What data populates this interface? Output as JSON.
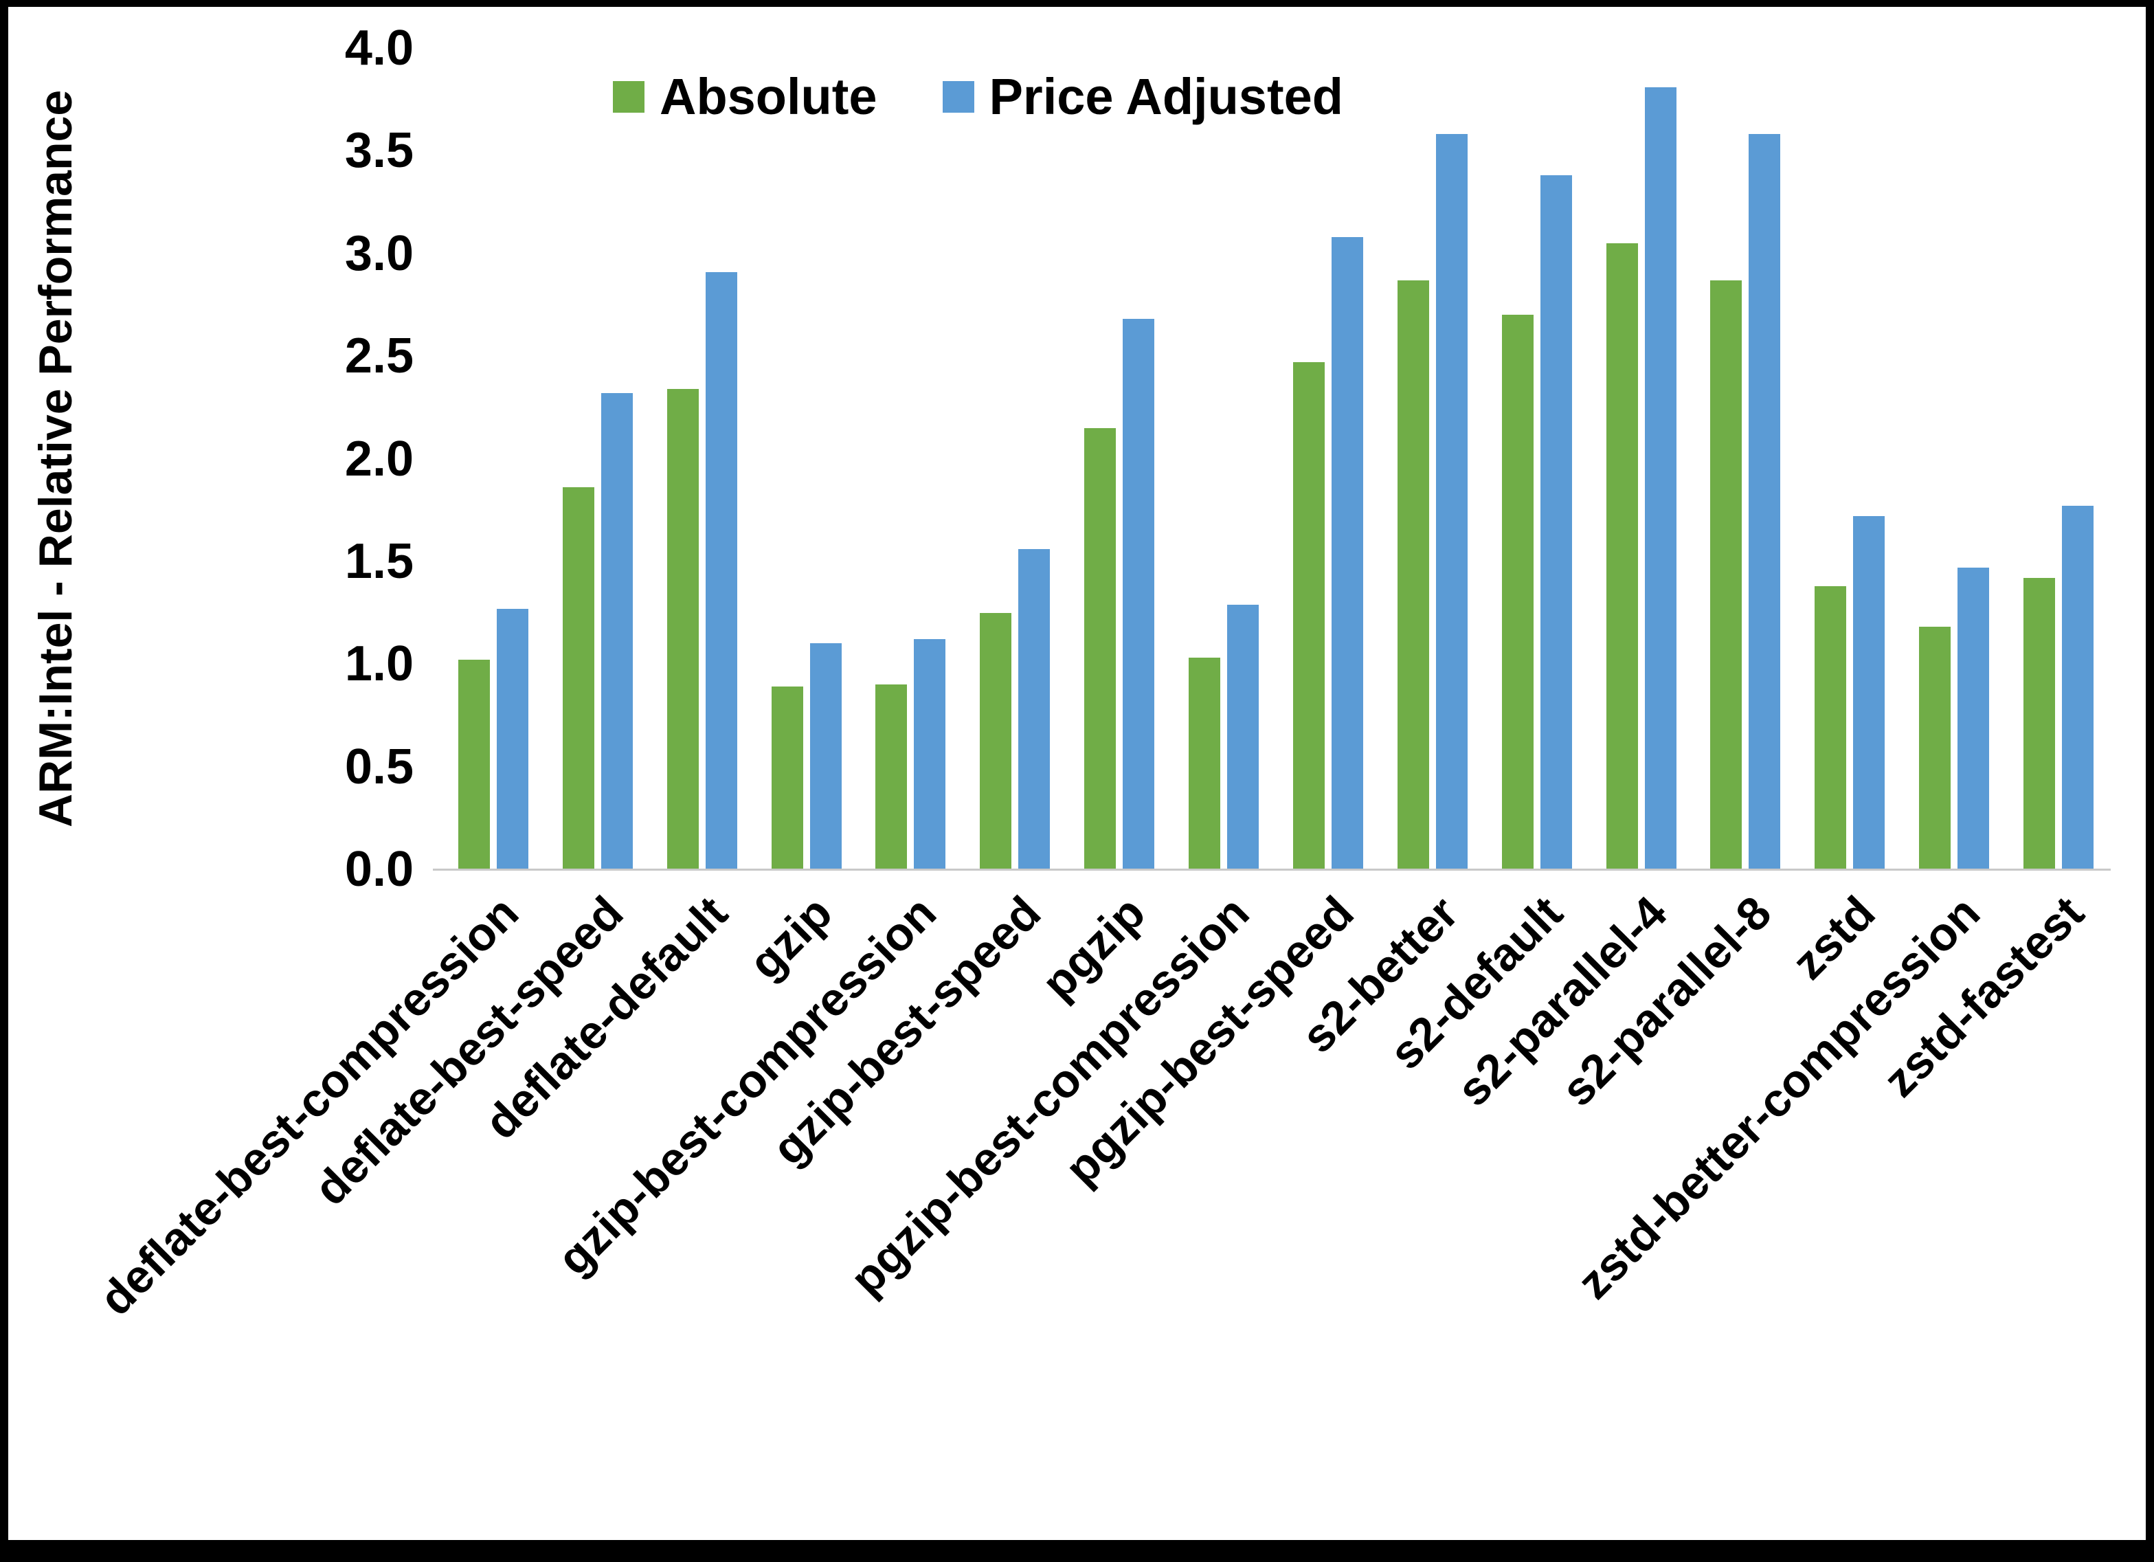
{
  "chart_data": {
    "type": "bar",
    "title": "",
    "xlabel": "",
    "ylabel": "ARM:Intel - Relative Performance",
    "ylim": [
      0,
      4.0
    ],
    "yticks": [
      0.0,
      0.5,
      1.0,
      1.5,
      2.0,
      2.5,
      3.0,
      3.5,
      4.0
    ],
    "grid": false,
    "legend_position": "top",
    "categories": [
      "deflate-best-compression",
      "deflate-best-speed",
      "deflate-default",
      "gzip",
      "gzip-best-compression",
      "gzip-best-speed",
      "pgzip",
      "pgzip-best-compression",
      "pgzip-best-speed",
      "s2-better",
      "s2-default",
      "s2-parallel-4",
      "s2-parallel-8",
      "zstd",
      "zstd-better-compression",
      "zstd-fastest"
    ],
    "series": [
      {
        "name": "Absolute",
        "color": "#70AD47",
        "values": [
          1.02,
          1.86,
          2.34,
          0.89,
          0.9,
          1.25,
          2.15,
          1.03,
          2.47,
          2.87,
          2.7,
          3.05,
          2.87,
          1.38,
          1.18,
          1.42
        ]
      },
      {
        "name": "Price Adjusted",
        "color": "#5B9BD5",
        "values": [
          1.27,
          2.32,
          2.91,
          1.1,
          1.12,
          1.56,
          2.68,
          1.29,
          3.08,
          3.58,
          3.38,
          3.81,
          3.58,
          1.72,
          1.47,
          1.77
        ]
      }
    ]
  }
}
